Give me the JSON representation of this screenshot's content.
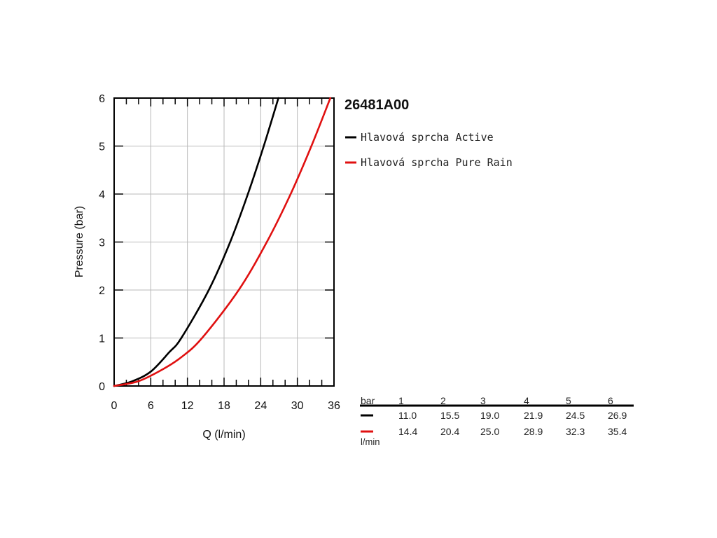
{
  "chart_data": {
    "type": "line",
    "title": "26481A00",
    "xlabel": "Q (l/min)",
    "ylabel": "Pressure (bar)",
    "xlim": [
      0,
      36
    ],
    "ylim": [
      0,
      6
    ],
    "xticks": [
      "0",
      "6",
      "12",
      "18",
      "24",
      "30",
      "36"
    ],
    "yticks": [
      "0",
      "1",
      "2",
      "3",
      "4",
      "5",
      "6"
    ],
    "grid": true,
    "legend_position": "right of plot, top",
    "series": [
      {
        "name": "Hlavová sprcha Active",
        "color": "#000000",
        "points": [
          [
            0,
            0
          ],
          [
            3,
            0.1
          ],
          [
            6,
            0.3
          ],
          [
            9,
            0.7
          ],
          [
            11,
            1.0
          ],
          [
            15.5,
            2.0
          ],
          [
            19,
            3.0
          ],
          [
            21.9,
            4.0
          ],
          [
            24.5,
            5.0
          ],
          [
            26.9,
            6.0
          ]
        ]
      },
      {
        "name": "Hlavová sprcha Pure Rain",
        "color": "#e01010",
        "points": [
          [
            0,
            0
          ],
          [
            4,
            0.1
          ],
          [
            8,
            0.35
          ],
          [
            11,
            0.6
          ],
          [
            14.4,
            1.0
          ],
          [
            20.4,
            2.0
          ],
          [
            25.0,
            3.0
          ],
          [
            28.9,
            4.0
          ],
          [
            32.3,
            5.0
          ],
          [
            35.4,
            6.0
          ]
        ]
      }
    ],
    "table": {
      "header_label": "bar",
      "pressures": [
        "1",
        "2",
        "3",
        "4",
        "5",
        "6"
      ],
      "unit_label": "l/min",
      "rows": [
        {
          "color": "#000000",
          "values": [
            "11.0",
            "15.5",
            "19.0",
            "21.9",
            "24.5",
            "26.9"
          ]
        },
        {
          "color": "#e01010",
          "values": [
            "14.4",
            "20.4",
            "25.0",
            "28.9",
            "32.3",
            "35.4"
          ]
        }
      ]
    }
  }
}
